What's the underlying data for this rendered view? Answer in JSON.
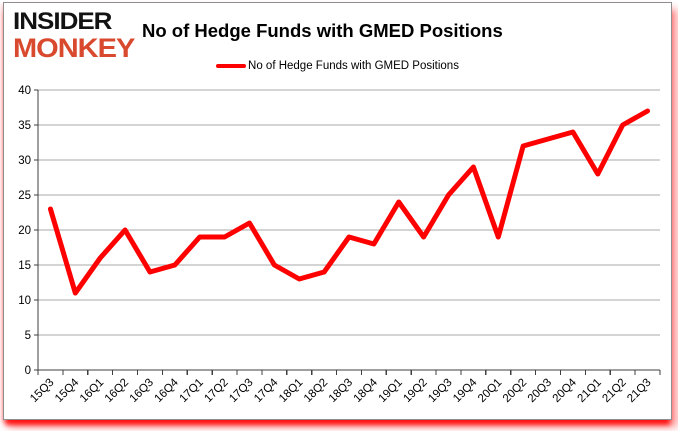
{
  "logo": {
    "line1": "INSIDER",
    "line2": "MONKEY"
  },
  "header": {
    "title": "No of Hedge Funds with GMED Positions"
  },
  "legend": {
    "label": "No of Hedge Funds with GMED Positions"
  },
  "colors": {
    "series": "#ff0000",
    "gridline": "#a8a8a8",
    "axis": "#3f3f3f",
    "logo_black": "#121212",
    "logo_red": "#d8492e",
    "panel_border": "#8e8e8e",
    "shadow": "#ff0000"
  },
  "chart_data": {
    "type": "line",
    "title": "No of Hedge Funds with GMED Positions",
    "categories": [
      "15Q3",
      "15Q4",
      "16Q1",
      "16Q2",
      "16Q3",
      "16Q4",
      "17Q1",
      "17Q2",
      "17Q3",
      "17Q4",
      "18Q1",
      "18Q2",
      "18Q3",
      "18Q4",
      "19Q1",
      "19Q2",
      "19Q3",
      "19Q4",
      "20Q1",
      "20Q2",
      "20Q3",
      "20Q4",
      "21Q1",
      "21Q2",
      "21Q3"
    ],
    "series": [
      {
        "name": "No of Hedge Funds with GMED Positions",
        "color": "#ff0000",
        "values": [
          23,
          11,
          16,
          20,
          14,
          15,
          19,
          19,
          21,
          15,
          13,
          14,
          19,
          18,
          24,
          19,
          25,
          29,
          19,
          32,
          33,
          34,
          28,
          35,
          37
        ]
      }
    ],
    "xlabel": "",
    "ylabel": "",
    "ylim": [
      0,
      40
    ],
    "ytick_step": 5,
    "grid": true,
    "legend_position": "top-center"
  }
}
